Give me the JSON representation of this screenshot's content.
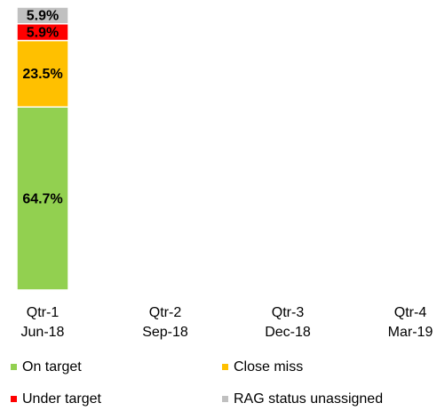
{
  "chart_data": {
    "type": "stacked_bar",
    "categories": [
      [
        "Qtr-1",
        "Jun-18"
      ],
      [
        "Qtr-2",
        "Sep-18"
      ],
      [
        "Qtr-3",
        "Dec-18"
      ],
      [
        "Qtr-4",
        "Mar-19"
      ]
    ],
    "ylim": [
      0,
      100
    ],
    "series": [
      {
        "name": "On target",
        "color": "#92d050",
        "values": [
          64.7,
          null,
          null,
          null
        ],
        "value_labels": [
          "64.7%",
          null,
          null,
          null
        ]
      },
      {
        "name": "Close miss",
        "color": "#ffc000",
        "values": [
          23.5,
          null,
          null,
          null
        ],
        "value_labels": [
          "23.5%",
          null,
          null,
          null
        ]
      },
      {
        "name": "Under target",
        "color": "#ff0000",
        "values": [
          5.9,
          null,
          null,
          null
        ],
        "value_labels": [
          "5.9%",
          null,
          null,
          null
        ]
      },
      {
        "name": "RAG status unassigned",
        "color": "#c0c0c0",
        "values": [
          5.9,
          null,
          null,
          null
        ],
        "value_labels": [
          "5.9%",
          null,
          null,
          null
        ]
      }
    ],
    "legend": "bottom"
  }
}
